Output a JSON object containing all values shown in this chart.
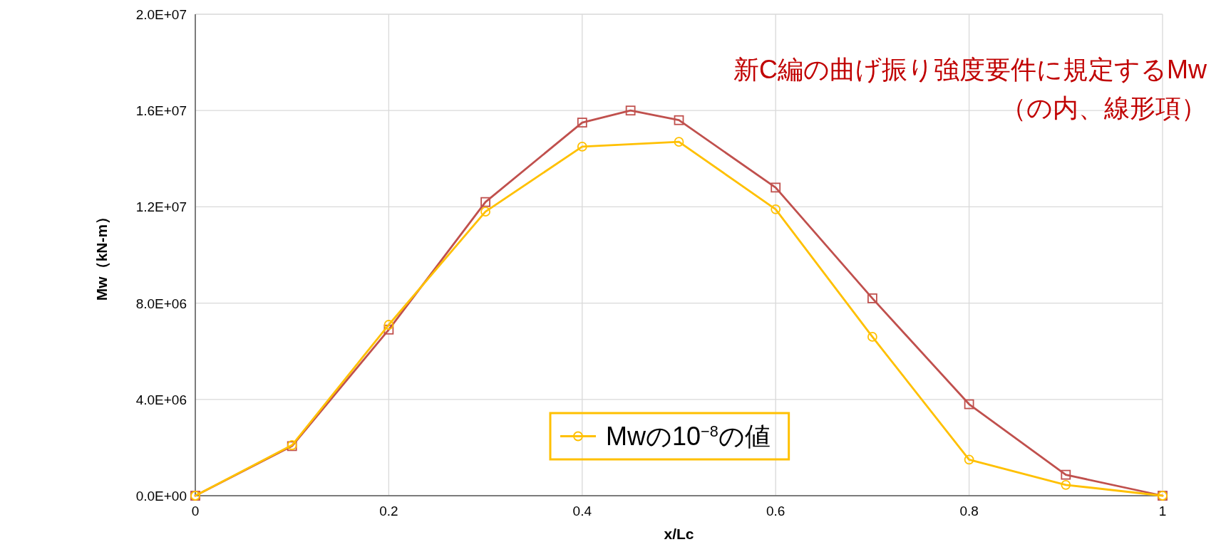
{
  "chart_data": {
    "type": "line",
    "xlabel": "x/Lc",
    "ylabel": "Mw（kN-m）",
    "xlim": [
      0,
      1
    ],
    "xticks": [
      0,
      0.2,
      0.4,
      0.6,
      0.8,
      1
    ],
    "ylim": [
      0,
      20000000
    ],
    "yticks": [
      {
        "value": 0,
        "label": "0.0E+00"
      },
      {
        "value": 4000000,
        "label": "4.0E+06"
      },
      {
        "value": 8000000,
        "label": "8.0E+06"
      },
      {
        "value": 12000000,
        "label": "1.2E+07"
      },
      {
        "value": 16000000,
        "label": "1.6E+07"
      },
      {
        "value": 20000000,
        "label": "2.0E+07"
      }
    ],
    "grid": true,
    "series": [
      {
        "name": "新C編の曲げ振り強度要件に規定するMw\n（の内、線形項）",
        "color": "#c0504d",
        "marker": "square",
        "x": [
          0,
          0.1,
          0.2,
          0.3,
          0.4,
          0.45,
          0.5,
          0.6,
          0.7,
          0.8,
          0.9,
          1
        ],
        "values": [
          0,
          2060000,
          6900000,
          12200000,
          15500000,
          16000000,
          15600000,
          12800000,
          8200000,
          3800000,
          870000,
          0
        ]
      },
      {
        "name": "Mwの10$^{−8}$の値",
        "color": "#ffc000",
        "marker": "circle",
        "x": [
          0,
          0.1,
          0.2,
          0.3,
          0.4,
          0.5,
          0.6,
          0.7,
          0.8,
          0.9,
          1
        ],
        "values": [
          0,
          2100000,
          7100000,
          11800000,
          14500000,
          14700000,
          11900000,
          6600000,
          1500000,
          450000,
          0
        ]
      }
    ]
  }
}
